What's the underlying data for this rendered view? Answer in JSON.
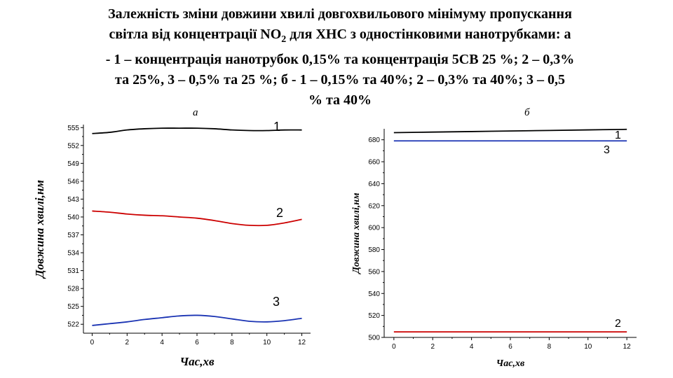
{
  "slide": {
    "title_lines": [
      "Залежність зміни довжини хвилі довгохвильового мінімуму пропускання",
      "світла від концентрації NO",
      "2",
      " для ХНС з одностінковими нанотрубками: а",
      "- 1 – концентрація нанотрубок 0,15% та концентрація 5СВ 25 %; 2 – 0,3%",
      "та 25%, 3 – 0,5% та 25 %; б -  1 – 0,15% та 40%; 2 – 0,3%  та 40%; 3 – 0,5",
      "% та 40%"
    ]
  },
  "chart_data": [
    {
      "type": "line",
      "panel_label": "а",
      "xlabel": "Час,хв",
      "ylabel": "Довжина хвилі,нм",
      "xlim": [
        -0.5,
        12.5
      ],
      "ylim": [
        520.5,
        555.5
      ],
      "x_ticks": [
        0,
        2,
        4,
        6,
        8,
        10,
        12
      ],
      "y_ticks": [
        522,
        525,
        528,
        531,
        534,
        537,
        540,
        543,
        546,
        549,
        552,
        555
      ],
      "series": [
        {
          "name": "1",
          "color": "#000000",
          "x": [
            0,
            1,
            2,
            3,
            4,
            5,
            6,
            7,
            8,
            9,
            10,
            11,
            12
          ],
          "y": [
            554.0,
            554.2,
            554.6,
            554.8,
            554.9,
            554.9,
            554.9,
            554.8,
            554.6,
            554.5,
            554.5,
            554.6,
            554.6
          ]
        },
        {
          "name": "2",
          "color": "#cc0000",
          "x": [
            0,
            1,
            2,
            3,
            4,
            5,
            6,
            7,
            8,
            9,
            10,
            11,
            12
          ],
          "y": [
            541.0,
            540.8,
            540.5,
            540.3,
            540.2,
            540.0,
            539.8,
            539.4,
            538.9,
            538.6,
            538.6,
            539.0,
            539.6
          ]
        },
        {
          "name": "3",
          "color": "#1a33b3",
          "x": [
            0,
            1,
            2,
            3,
            4,
            5,
            6,
            7,
            8,
            9,
            10,
            11,
            12
          ],
          "y": [
            521.8,
            522.1,
            522.4,
            522.8,
            523.1,
            523.4,
            523.5,
            523.3,
            522.9,
            522.5,
            522.4,
            522.6,
            523.0
          ]
        }
      ]
    },
    {
      "type": "line",
      "panel_label": "б",
      "xlabel": "Час,хв",
      "ylabel": "Довжина хвилі,нм",
      "xlim": [
        -0.5,
        12.5
      ],
      "ylim": [
        500,
        690
      ],
      "x_ticks": [
        0,
        2,
        4,
        6,
        8,
        10,
        12
      ],
      "y_ticks": [
        500,
        520,
        540,
        560,
        580,
        600,
        620,
        640,
        660,
        680
      ],
      "series": [
        {
          "name": "1",
          "color": "#000000",
          "x": [
            0,
            2,
            4,
            6,
            8,
            10,
            12
          ],
          "y": [
            686.5,
            687.0,
            687.5,
            688.0,
            688.5,
            689.0,
            689.5
          ]
        },
        {
          "name": "2",
          "color": "#cc0000",
          "x": [
            0,
            2,
            4,
            6,
            8,
            10,
            12
          ],
          "y": [
            505,
            505,
            505,
            505,
            505,
            505,
            505
          ]
        },
        {
          "name": "3",
          "color": "#1a33b3",
          "x": [
            0,
            2,
            4,
            6,
            8,
            10,
            12
          ],
          "y": [
            679,
            679,
            679,
            679,
            679,
            679,
            679
          ]
        }
      ]
    }
  ]
}
